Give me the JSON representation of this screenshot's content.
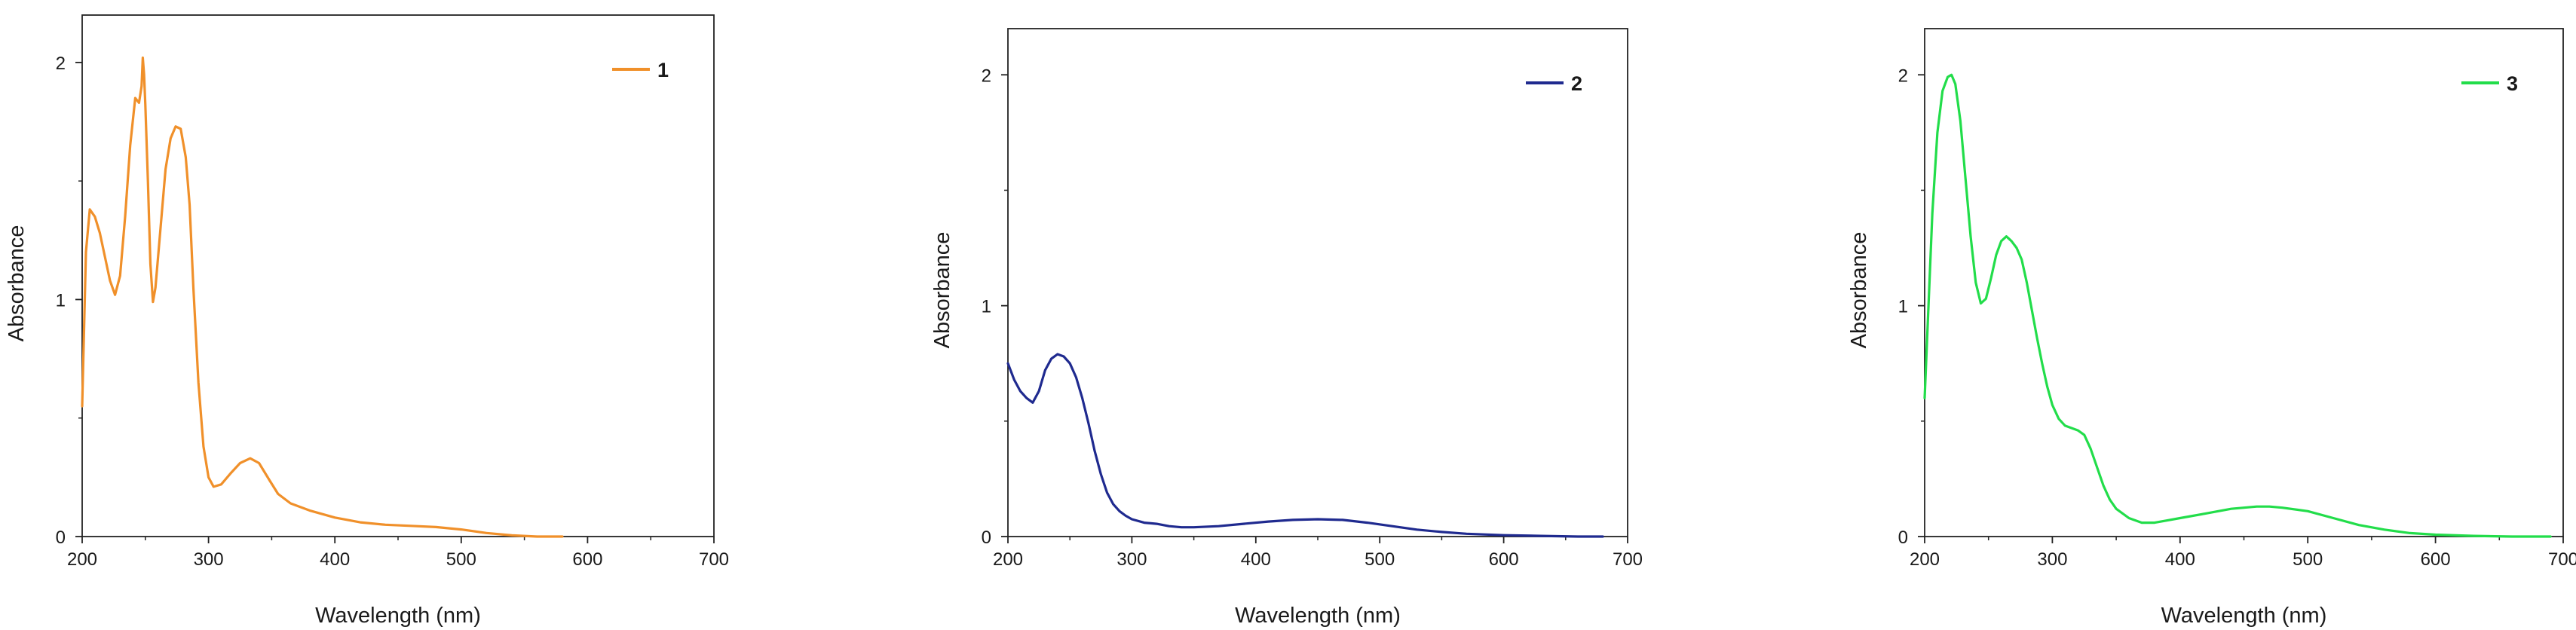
{
  "chart_data": [
    {
      "type": "line",
      "title": "",
      "xlabel": "Wavelength (nm)",
      "ylabel": "Absorbance",
      "xlim": [
        200,
        700
      ],
      "ylim": [
        0,
        2.2
      ],
      "xticks": [
        200,
        300,
        400,
        500,
        600,
        700
      ],
      "yticks": [
        0,
        1,
        2
      ],
      "grid": false,
      "legend_position": "top-right",
      "series": [
        {
          "name": "1",
          "color": "#f0902a",
          "x": [
            200,
            203,
            206,
            210,
            214,
            218,
            222,
            226,
            230,
            234,
            238,
            242,
            245,
            247,
            248,
            249,
            250,
            252,
            254,
            256,
            258,
            262,
            266,
            270,
            274,
            278,
            282,
            285,
            288,
            292,
            296,
            300,
            304,
            310,
            318,
            325,
            333,
            340,
            348,
            355,
            365,
            380,
            400,
            420,
            440,
            460,
            480,
            500,
            520,
            540,
            560,
            580
          ],
          "y": [
            0.55,
            1.2,
            1.38,
            1.35,
            1.28,
            1.18,
            1.08,
            1.02,
            1.1,
            1.35,
            1.65,
            1.85,
            1.83,
            1.9,
            2.02,
            1.95,
            1.82,
            1.5,
            1.15,
            0.99,
            1.05,
            1.3,
            1.55,
            1.68,
            1.73,
            1.72,
            1.6,
            1.4,
            1.05,
            0.65,
            0.38,
            0.25,
            0.21,
            0.22,
            0.27,
            0.31,
            0.33,
            0.31,
            0.24,
            0.18,
            0.14,
            0.11,
            0.08,
            0.06,
            0.05,
            0.045,
            0.04,
            0.03,
            0.015,
            0.005,
            0.0,
            0.0
          ]
        }
      ]
    },
    {
      "type": "line",
      "title": "",
      "xlabel": "Wavelength (nm)",
      "ylabel": "Absorbance",
      "xlim": [
        200,
        700
      ],
      "ylim": [
        0,
        2.2
      ],
      "xticks": [
        200,
        300,
        400,
        500,
        600,
        700
      ],
      "yticks": [
        0,
        1,
        2
      ],
      "grid": false,
      "legend_position": "top-right",
      "series": [
        {
          "name": "2",
          "color": "#1f2a8f",
          "x": [
            200,
            205,
            210,
            215,
            220,
            225,
            230,
            235,
            240,
            245,
            250,
            255,
            260,
            265,
            270,
            275,
            280,
            285,
            290,
            295,
            300,
            310,
            320,
            330,
            340,
            350,
            370,
            390,
            410,
            430,
            450,
            470,
            490,
            510,
            530,
            550,
            570,
            600,
            630,
            660,
            680
          ],
          "y": [
            0.75,
            0.68,
            0.63,
            0.6,
            0.58,
            0.63,
            0.72,
            0.77,
            0.79,
            0.78,
            0.75,
            0.69,
            0.6,
            0.49,
            0.37,
            0.27,
            0.19,
            0.14,
            0.11,
            0.09,
            0.075,
            0.06,
            0.055,
            0.045,
            0.04,
            0.04,
            0.045,
            0.055,
            0.065,
            0.072,
            0.075,
            0.072,
            0.06,
            0.045,
            0.03,
            0.02,
            0.012,
            0.006,
            0.003,
            0.0,
            0.0
          ]
        }
      ]
    },
    {
      "type": "line",
      "title": "",
      "xlabel": "Wavelength (nm)",
      "ylabel": "Absorbance",
      "xlim": [
        200,
        700
      ],
      "ylim": [
        0,
        2.2
      ],
      "xticks": [
        200,
        300,
        400,
        500,
        600,
        700
      ],
      "yticks": [
        0,
        1,
        2
      ],
      "grid": false,
      "legend_position": "top-right",
      "series": [
        {
          "name": "3",
          "color": "#22dd4a",
          "x": [
            200,
            203,
            206,
            210,
            214,
            218,
            221,
            224,
            228,
            232,
            236,
            240,
            244,
            248,
            252,
            256,
            260,
            264,
            268,
            272,
            276,
            280,
            284,
            288,
            292,
            296,
            300,
            305,
            310,
            315,
            320,
            325,
            330,
            335,
            340,
            345,
            350,
            360,
            370,
            380,
            390,
            400,
            420,
            440,
            460,
            470,
            480,
            500,
            520,
            540,
            560,
            580,
            600,
            630,
            660,
            690
          ],
          "y": [
            0.6,
            1.0,
            1.4,
            1.75,
            1.93,
            1.99,
            2.0,
            1.96,
            1.8,
            1.55,
            1.3,
            1.1,
            1.01,
            1.03,
            1.12,
            1.22,
            1.28,
            1.3,
            1.28,
            1.25,
            1.2,
            1.1,
            0.98,
            0.86,
            0.75,
            0.65,
            0.57,
            0.51,
            0.48,
            0.47,
            0.46,
            0.44,
            0.38,
            0.3,
            0.22,
            0.16,
            0.12,
            0.08,
            0.06,
            0.06,
            0.07,
            0.08,
            0.1,
            0.12,
            0.13,
            0.13,
            0.125,
            0.11,
            0.08,
            0.05,
            0.03,
            0.015,
            0.008,
            0.003,
            0.0,
            0.0
          ]
        }
      ]
    }
  ]
}
